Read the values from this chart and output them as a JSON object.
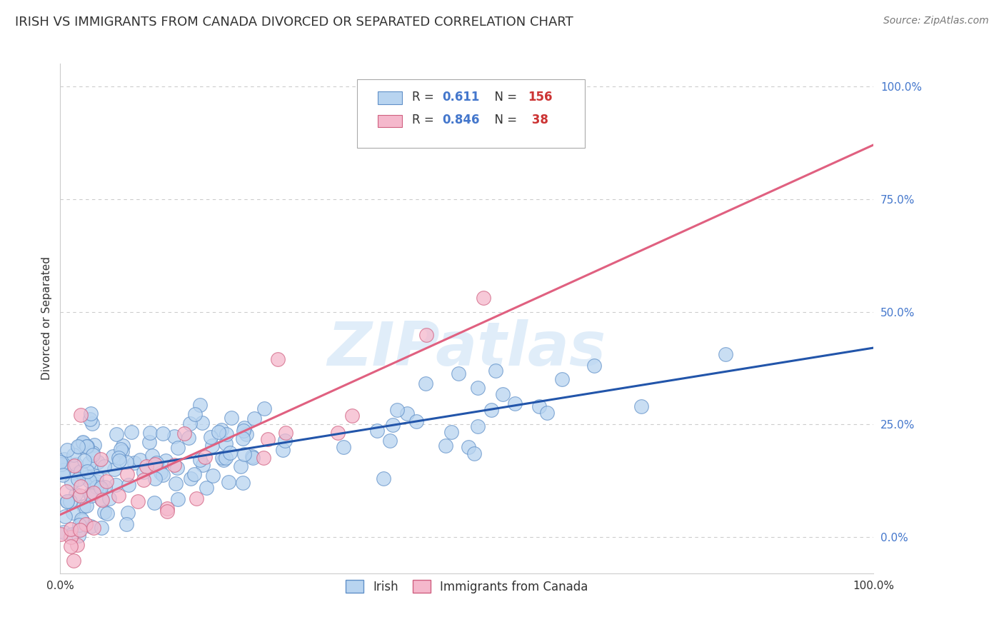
{
  "title": "IRISH VS IMMIGRANTS FROM CANADA DIVORCED OR SEPARATED CORRELATION CHART",
  "source": "Source: ZipAtlas.com",
  "ylabel": "Divorced or Separated",
  "watermark": "ZIPatlas",
  "ytick_labels": [
    "0.0%",
    "25.0%",
    "50.0%",
    "75.0%",
    "100.0%"
  ],
  "ytick_positions": [
    0.0,
    0.25,
    0.5,
    0.75,
    1.0
  ],
  "xlim": [
    0.0,
    1.0
  ],
  "ylim": [
    -0.08,
    1.05
  ],
  "grid_color": "#cccccc",
  "background_color": "#ffffff",
  "irish_color": "#b8d4f0",
  "irish_edge_color": "#6090c8",
  "canada_color": "#f5b8cc",
  "canada_edge_color": "#d06080",
  "blue_line_color": "#2255aa",
  "pink_line_color": "#e06080",
  "title_fontsize": 13,
  "source_fontsize": 10,
  "label_fontsize": 11,
  "irish_N": 156,
  "canada_N": 38,
  "irish_line_x": [
    0.0,
    1.0
  ],
  "irish_line_y": [
    0.13,
    0.42
  ],
  "canada_line_x": [
    0.0,
    1.0
  ],
  "canada_line_y": [
    0.05,
    0.87
  ],
  "legend_R_color": "#4477cc",
  "legend_N_color": "#cc4444"
}
